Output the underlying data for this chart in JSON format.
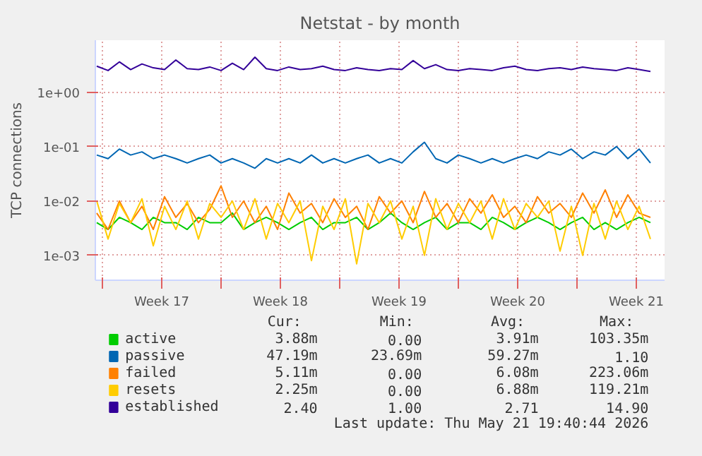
{
  "chart_data": {
    "type": "line",
    "title": "Netstat - by month",
    "ylabel": "TCP connections",
    "x": [
      "2026-04-19T16:00",
      "2026-04-20T08:00",
      "2026-04-21T00:00",
      "2026-04-21T16:00",
      "2026-04-22T08:00",
      "2026-04-23T00:00",
      "2026-04-23T16:00",
      "2026-04-24T08:00",
      "2026-04-25T00:00",
      "2026-04-25T16:00",
      "2026-04-26T08:00",
      "2026-04-27T00:00",
      "2026-04-27T16:00",
      "2026-04-28T08:00",
      "2026-04-29T00:00",
      "2026-04-29T16:00",
      "2026-04-30T08:00",
      "2026-05-01T00:00",
      "2026-05-01T16:00",
      "2026-05-02T08:00",
      "2026-05-03T00:00",
      "2026-05-03T16:00",
      "2026-05-04T08:00",
      "2026-05-05T00:00",
      "2026-05-05T16:00",
      "2026-05-06T08:00",
      "2026-05-07T00:00",
      "2026-05-07T16:00",
      "2026-05-08T08:00",
      "2026-05-09T00:00",
      "2026-05-09T16:00",
      "2026-05-10T08:00",
      "2026-05-11T00:00",
      "2026-05-11T16:00",
      "2026-05-12T08:00",
      "2026-05-13T00:00",
      "2026-05-13T16:00",
      "2026-05-14T08:00",
      "2026-05-15T00:00",
      "2026-05-15T16:00",
      "2026-05-16T08:00",
      "2026-05-17T00:00",
      "2026-05-17T16:00",
      "2026-05-18T08:00",
      "2026-05-19T00:00",
      "2026-05-19T16:00",
      "2026-05-20T08:00",
      "2026-05-21T00:00",
      "2026-05-21T16:00",
      "2026-05-22T08:00"
    ],
    "series": [
      {
        "name": "active",
        "color": "#00cc00",
        "values": [
          0.004,
          0.003,
          0.005,
          0.004,
          0.003,
          0.005,
          0.004,
          0.004,
          0.003,
          0.005,
          0.004,
          0.004,
          0.006,
          0.003,
          0.004,
          0.005,
          0.004,
          0.003,
          0.004,
          0.005,
          0.003,
          0.004,
          0.004,
          0.005,
          0.003,
          0.004,
          0.006,
          0.004,
          0.003,
          0.004,
          0.005,
          0.003,
          0.004,
          0.004,
          0.003,
          0.005,
          0.004,
          0.003,
          0.004,
          0.005,
          0.004,
          0.003,
          0.004,
          0.005,
          0.003,
          0.004,
          0.003,
          0.004,
          0.005,
          0.004
        ]
      },
      {
        "name": "passive",
        "color": "#0066b3",
        "values": [
          0.07,
          0.06,
          0.09,
          0.07,
          0.08,
          0.06,
          0.07,
          0.06,
          0.05,
          0.06,
          0.07,
          0.05,
          0.06,
          0.05,
          0.04,
          0.06,
          0.05,
          0.06,
          0.05,
          0.07,
          0.05,
          0.06,
          0.05,
          0.06,
          0.07,
          0.05,
          0.06,
          0.05,
          0.08,
          0.12,
          0.06,
          0.05,
          0.07,
          0.06,
          0.05,
          0.06,
          0.05,
          0.06,
          0.07,
          0.06,
          0.08,
          0.07,
          0.09,
          0.06,
          0.08,
          0.07,
          0.1,
          0.06,
          0.09,
          0.05
        ]
      },
      {
        "name": "failed",
        "color": "#ff8000",
        "values": [
          0.006,
          0.003,
          0.01,
          0.004,
          0.008,
          0.003,
          0.012,
          0.005,
          0.009,
          0.004,
          0.007,
          0.019,
          0.005,
          0.01,
          0.004,
          0.008,
          0.003,
          0.014,
          0.006,
          0.009,
          0.004,
          0.011,
          0.005,
          0.008,
          0.003,
          0.012,
          0.006,
          0.01,
          0.004,
          0.015,
          0.005,
          0.009,
          0.004,
          0.011,
          0.006,
          0.013,
          0.005,
          0.008,
          0.004,
          0.012,
          0.006,
          0.009,
          0.005,
          0.014,
          0.006,
          0.016,
          0.005,
          0.013,
          0.006,
          0.005
        ]
      },
      {
        "name": "resets",
        "color": "#ffcc00",
        "values": [
          0.01,
          0.002,
          0.009,
          0.004,
          0.011,
          0.0015,
          0.008,
          0.003,
          0.01,
          0.002,
          0.009,
          0.005,
          0.01,
          0.003,
          0.011,
          0.002,
          0.009,
          0.004,
          0.01,
          0.0008,
          0.008,
          0.003,
          0.011,
          0.0007,
          0.009,
          0.004,
          0.01,
          0.002,
          0.008,
          0.001,
          0.011,
          0.003,
          0.009,
          0.004,
          0.01,
          0.002,
          0.011,
          0.003,
          0.009,
          0.005,
          0.01,
          0.0012,
          0.008,
          0.001,
          0.009,
          0.002,
          0.01,
          0.003,
          0.008,
          0.002
        ]
      },
      {
        "name": "established",
        "color": "#330099",
        "values": [
          3.0,
          2.5,
          3.6,
          2.6,
          3.3,
          2.8,
          2.6,
          3.9,
          2.7,
          2.6,
          2.9,
          2.5,
          3.4,
          2.6,
          4.4,
          2.7,
          2.5,
          2.9,
          2.6,
          2.7,
          3.0,
          2.6,
          2.5,
          2.8,
          2.6,
          2.5,
          2.7,
          2.6,
          3.8,
          2.7,
          3.2,
          2.6,
          2.5,
          2.7,
          2.6,
          2.5,
          2.8,
          3.0,
          2.6,
          2.5,
          2.7,
          2.8,
          2.6,
          2.9,
          2.7,
          2.6,
          2.5,
          2.8,
          2.6,
          2.4
        ]
      }
    ],
    "xlim": [
      "2026-04-19T14:00",
      "2026-05-23T04:00"
    ],
    "xticks": [
      {
        "value": "2026-04-20T00:00",
        "label": null
      },
      {
        "value": "2026-04-23T12:00",
        "label": "Week 17"
      },
      {
        "value": "2026-04-27T00:00",
        "label": null
      },
      {
        "value": "2026-04-30T12:00",
        "label": "Week 18"
      },
      {
        "value": "2026-05-04T00:00",
        "label": null
      },
      {
        "value": "2026-05-07T12:00",
        "label": "Week 19"
      },
      {
        "value": "2026-05-11T00:00",
        "label": null
      },
      {
        "value": "2026-05-14T12:00",
        "label": "Week 20"
      },
      {
        "value": "2026-05-18T00:00",
        "label": null
      },
      {
        "value": "2026-05-21T12:00",
        "label": "Week 21"
      }
    ],
    "ylim": [
      0.00035,
      9
    ],
    "log": "y",
    "yticks": [
      {
        "value": 0.001,
        "label": "1e-03"
      },
      {
        "value": 0.01,
        "label": "1e-02"
      },
      {
        "value": 0.1,
        "label": "1e-01"
      },
      {
        "value": 1,
        "label": "1e+00"
      }
    ],
    "grid": true,
    "legend": "bottom",
    "line_style": "solid",
    "annotations": [
      "Cur:",
      "Min:",
      "Avg:",
      "Max:",
      "3.88m",
      "0.00",
      "3.91m",
      "103.35m",
      "47.19m",
      "23.69m",
      "59.27m",
      "1.10",
      "5.11m",
      "0.00",
      "6.08m",
      "223.06m",
      "2.25m",
      "0.00",
      "6.88m",
      "119.21m",
      "2.40",
      "1.00",
      "2.71",
      "14.90",
      "Last update: Thu May 21 19:40:44 2026"
    ]
  }
}
